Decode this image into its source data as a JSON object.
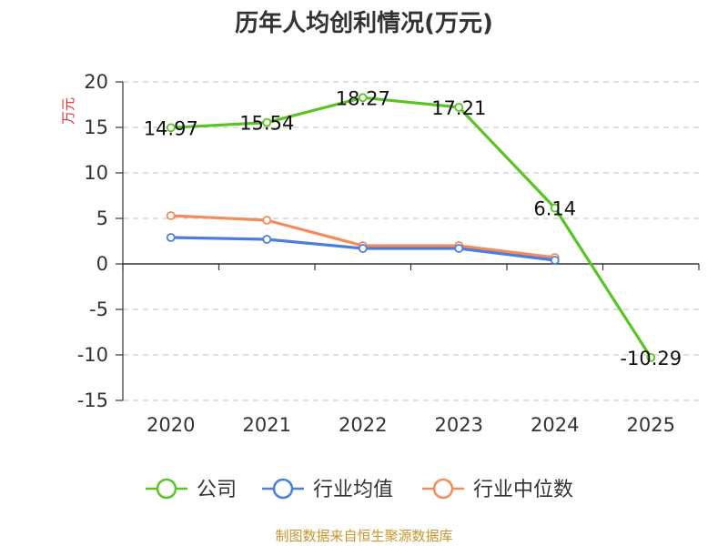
{
  "chart_data": {
    "type": "line",
    "title": "历年人均创利情况(万元)",
    "ylabel": "万元",
    "xlabel": "",
    "categories": [
      "2020",
      "2021",
      "2022",
      "2023",
      "2024",
      "2025"
    ],
    "ylim": [
      -15,
      20
    ],
    "yticks": [
      20,
      15,
      10,
      5,
      0,
      -5,
      -10,
      -15
    ],
    "grid": true,
    "legend_position": "bottom",
    "series": [
      {
        "name": "公司",
        "color": "#5cc325",
        "values": [
          14.97,
          15.54,
          18.27,
          17.21,
          6.14,
          -10.29
        ],
        "labels": [
          "14.97",
          "15.54",
          "18.27",
          "17.21",
          "6.14",
          "-10.29"
        ]
      },
      {
        "name": "行业均值",
        "color": "#4a7fdc",
        "values": [
          2.9,
          2.7,
          1.7,
          1.7,
          0.4,
          null
        ]
      },
      {
        "name": "行业中位数",
        "color": "#f48c5a",
        "values": [
          5.3,
          4.8,
          2.0,
          2.0,
          0.7,
          null
        ]
      }
    ],
    "source": "制图数据来自恒生聚源数据库"
  }
}
